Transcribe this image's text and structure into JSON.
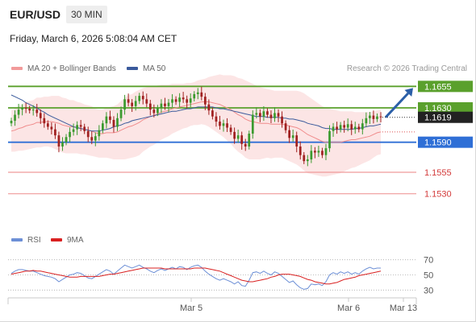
{
  "header": {
    "symbol": "EUR/USD",
    "timeframe": "30 MIN",
    "datetime": "Friday, March 6, 2026 5:08:04 AM CET"
  },
  "legend": {
    "ma20": {
      "label": "MA 20 + Bollinger Bands",
      "color": "#f29a9a"
    },
    "ma50": {
      "label": "MA 50",
      "color": "#3a5a9c"
    },
    "credit": "Research © 2026 Trading Central"
  },
  "rsi_legend": {
    "rsi": {
      "label": "RSI",
      "color": "#6c8fd6"
    },
    "ma9": {
      "label": "9MA",
      "color": "#d92020"
    }
  },
  "chart_data": [
    {
      "type": "candlestick",
      "ylim": [
        1.151,
        1.166
      ],
      "x_ticks": [
        "Mar 5",
        "Mar 6",
        "Mar 13"
      ],
      "current_price": {
        "value": 1.1619,
        "label": "1.1619"
      },
      "levels": [
        {
          "value": 1.1655,
          "label": "1.1655",
          "kind": "resistance"
        },
        {
          "value": 1.163,
          "label": "1.1630",
          "kind": "resistance"
        },
        {
          "value": 1.159,
          "label": "1.1590",
          "kind": "pivot"
        },
        {
          "value": 1.1555,
          "label": "1.1555",
          "kind": "support"
        },
        {
          "value": 1.153,
          "label": "1.1530",
          "kind": "support"
        }
      ],
      "forecast_arrow": {
        "from": 1.1619,
        "to": 1.1655
      },
      "close": [
        1.1615,
        1.1622,
        1.1628,
        1.163,
        1.1629,
        1.1627,
        1.1628,
        1.1624,
        1.1618,
        1.1612,
        1.1608,
        1.1605,
        1.1598,
        1.1585,
        1.159,
        1.1596,
        1.1602,
        1.1605,
        1.161,
        1.1608,
        1.1603,
        1.1596,
        1.1592,
        1.1597,
        1.1604,
        1.1612,
        1.162,
        1.1616,
        1.1608,
        1.1618,
        1.1628,
        1.164,
        1.1636,
        1.1632,
        1.1638,
        1.1644,
        1.164,
        1.1635,
        1.1628,
        1.1624,
        1.163,
        1.1635,
        1.1632,
        1.1636,
        1.164,
        1.1637,
        1.1642,
        1.164,
        1.1636,
        1.1641,
        1.1646,
        1.1648,
        1.1643,
        1.1634,
        1.1627,
        1.162,
        1.1614,
        1.1609,
        1.1612,
        1.1607,
        1.1602,
        1.1594,
        1.1598,
        1.1588,
        1.1585,
        1.16,
        1.1622,
        1.1624,
        1.162,
        1.1626,
        1.1622,
        1.1618,
        1.1624,
        1.162,
        1.1612,
        1.1604,
        1.1595,
        1.1598,
        1.1585,
        1.1575,
        1.1568,
        1.157,
        1.158,
        1.1578,
        1.158,
        1.1575,
        1.1583,
        1.1603,
        1.1608,
        1.1605,
        1.161,
        1.1607,
        1.1611,
        1.1605,
        1.1608,
        1.1605,
        1.1612,
        1.1618,
        1.1621,
        1.1617,
        1.162,
        1.1619
      ],
      "ma20": [
        1.1603,
        1.1604,
        1.1606,
        1.1607,
        1.1609,
        1.161,
        1.1611,
        1.1613,
        1.1613,
        1.1614,
        1.1614,
        1.1614,
        1.1613,
        1.1612,
        1.161,
        1.1609,
        1.1608,
        1.1608,
        1.1607,
        1.1606,
        1.1605,
        1.1604,
        1.1603,
        1.1601,
        1.16,
        1.16,
        1.1601,
        1.1601,
        1.1601,
        1.1602,
        1.1604,
        1.1606,
        1.1608,
        1.1609,
        1.1611,
        1.1613,
        1.1616,
        1.1618,
        1.162,
        1.1621,
        1.1623,
        1.1625,
        1.1626,
        1.1627,
        1.1629,
        1.163,
        1.1631,
        1.1632,
        1.1633,
        1.1634,
        1.1635,
        1.1636,
        1.1637,
        1.1637,
        1.1637,
        1.1636,
        1.1635,
        1.1634,
        1.1632,
        1.163,
        1.1628,
        1.1625,
        1.1622,
        1.162,
        1.1617,
        1.1615,
        1.1614,
        1.1613,
        1.1612,
        1.1612,
        1.1612,
        1.1611,
        1.1611,
        1.1611,
        1.1611,
        1.161,
        1.1609,
        1.1608,
        1.1607,
        1.1605,
        1.1602,
        1.1599,
        1.1597,
        1.1595,
        1.1593,
        1.1591,
        1.159,
        1.159,
        1.159,
        1.159,
        1.159,
        1.1591,
        1.1592,
        1.1593,
        1.1593,
        1.1594,
        1.1595,
        1.1596,
        1.1597,
        1.1599,
        1.1601,
        1.1602
      ],
      "ma50": [
        1.1645,
        1.1643,
        1.1641,
        1.1639,
        1.1636,
        1.1634,
        1.1632,
        1.163,
        1.1627,
        1.1625,
        1.1622,
        1.162,
        1.1618,
        1.1616,
        1.1614,
        1.1612,
        1.161,
        1.1608,
        1.1607,
        1.1606,
        1.1605,
        1.1604,
        1.1603,
        1.1603,
        1.1603,
        1.1604,
        1.1605,
        1.1606,
        1.1608,
        1.1609,
        1.161,
        1.1612,
        1.1613,
        1.1615,
        1.1616,
        1.1617,
        1.1618,
        1.1619,
        1.162,
        1.1621,
        1.1622,
        1.1623,
        1.1624,
        1.1625,
        1.1626,
        1.1626,
        1.1627,
        1.1628,
        1.1629,
        1.1629,
        1.163,
        1.1631,
        1.1631,
        1.1631,
        1.1631,
        1.1631,
        1.163,
        1.1629,
        1.1629,
        1.1628,
        1.1627,
        1.1626,
        1.1625,
        1.1624,
        1.1623,
        1.1622,
        1.1621,
        1.162,
        1.162,
        1.162,
        1.1619,
        1.1619,
        1.1619,
        1.1619,
        1.1618,
        1.1618,
        1.1617,
        1.1617,
        1.1616,
        1.1615,
        1.1614,
        1.1612,
        1.1611,
        1.161,
        1.1609,
        1.1607,
        1.1606,
        1.1606,
        1.1605,
        1.1605,
        1.1605,
        1.1605,
        1.1605,
        1.1605,
        1.1606,
        1.1606,
        1.1607,
        1.1608,
        1.1609,
        1.1609,
        1.161,
        1.1611
      ],
      "bb_width": [
        0.0024,
        0.0025,
        0.0026,
        0.0027,
        0.0028,
        0.0028,
        0.0028,
        0.0029,
        0.0029,
        0.0029,
        0.0029,
        0.003,
        0.0031,
        0.0032,
        0.0032,
        0.0032,
        0.0031,
        0.0031,
        0.003,
        0.003,
        0.0029,
        0.0029,
        0.0029,
        0.0028,
        0.0028,
        0.0028,
        0.0029,
        0.003,
        0.0031,
        0.0032,
        0.0034,
        0.0036,
        0.0037,
        0.0037,
        0.0038,
        0.0038,
        0.0037,
        0.0036,
        0.0035,
        0.0034,
        0.0033,
        0.0032,
        0.0031,
        0.003,
        0.0029,
        0.0028,
        0.0027,
        0.0026,
        0.0026,
        0.0025,
        0.0025,
        0.0026,
        0.0026,
        0.0027,
        0.0029,
        0.0031,
        0.0033,
        0.0035,
        0.0036,
        0.0038,
        0.004,
        0.0042,
        0.0043,
        0.0044,
        0.0045,
        0.0045,
        0.0044,
        0.0043,
        0.0042,
        0.0041,
        0.004,
        0.004,
        0.0039,
        0.0039,
        0.0039,
        0.004,
        0.0041,
        0.0042,
        0.0043,
        0.0044,
        0.0045,
        0.0045,
        0.0044,
        0.0043,
        0.0042,
        0.0041,
        0.004,
        0.0039,
        0.0038,
        0.0037,
        0.0036,
        0.0035,
        0.0034,
        0.0033,
        0.0032,
        0.0031,
        0.003,
        0.0029,
        0.0028,
        0.0027,
        0.0026,
        0.0026
      ]
    },
    {
      "type": "line",
      "name": "RSI",
      "ylim": [
        25,
        75
      ],
      "y_ticks": [
        70,
        50,
        30
      ],
      "rsi": [
        52,
        55,
        57,
        57,
        56,
        55,
        55,
        53,
        51,
        49,
        48,
        47,
        45,
        41,
        44,
        47,
        50,
        51,
        53,
        52,
        49,
        46,
        45,
        48,
        51,
        54,
        57,
        55,
        51,
        55,
        59,
        63,
        61,
        59,
        61,
        63,
        60,
        58,
        55,
        53,
        56,
        58,
        56,
        58,
        60,
        58,
        61,
        60,
        57,
        60,
        62,
        63,
        60,
        55,
        51,
        48,
        45,
        43,
        45,
        43,
        41,
        38,
        41,
        36,
        35,
        43,
        53,
        54,
        52,
        55,
        52,
        50,
        54,
        52,
        48,
        44,
        40,
        42,
        37,
        33,
        31,
        32,
        38,
        37,
        38,
        36,
        41,
        50,
        53,
        51,
        54,
        52,
        54,
        51,
        53,
        51,
        55,
        58,
        60,
        58,
        59,
        59
      ],
      "ma9": [
        51,
        52,
        53,
        54,
        55,
        55,
        56,
        55,
        55,
        54,
        53,
        52,
        51,
        50,
        49,
        48,
        47,
        47,
        47,
        48,
        48,
        48,
        48,
        48,
        48,
        49,
        50,
        51,
        51,
        52,
        53,
        54,
        55,
        56,
        57,
        58,
        59,
        59,
        59,
        59,
        59,
        59,
        58,
        58,
        58,
        58,
        58,
        58,
        58,
        58,
        59,
        59,
        59,
        59,
        58,
        57,
        56,
        55,
        53,
        51,
        49,
        47,
        45,
        43,
        42,
        41,
        41,
        42,
        43,
        44,
        45,
        47,
        48,
        50,
        51,
        51,
        51,
        50,
        49,
        48,
        46,
        44,
        43,
        41,
        40,
        39,
        38,
        38,
        39,
        40,
        42,
        44,
        45,
        46,
        47,
        49,
        50,
        51,
        52,
        53,
        54,
        55
      ]
    }
  ]
}
